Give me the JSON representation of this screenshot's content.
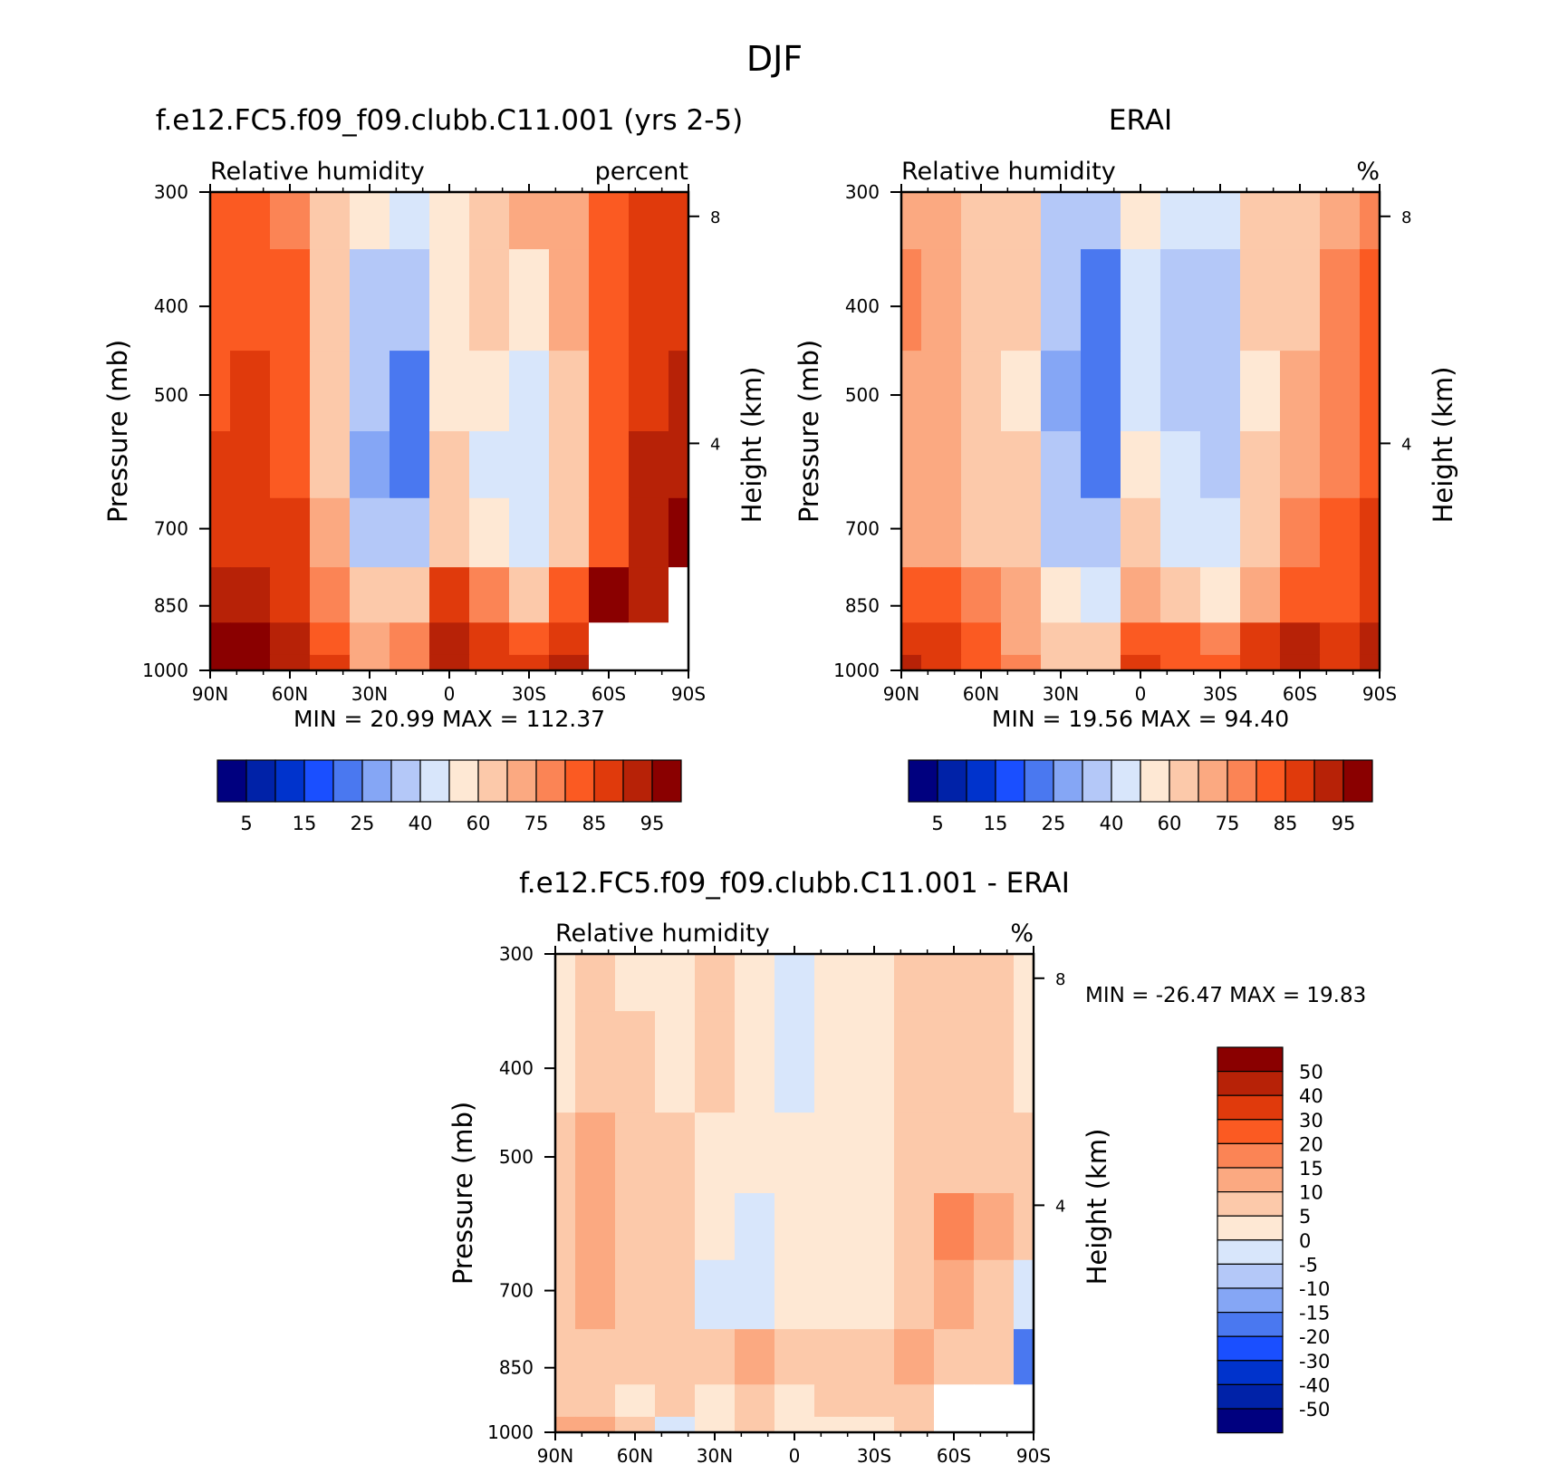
{
  "figure": {
    "title": "DJF"
  },
  "colors": {
    "rh_scale": [
      "#00007f",
      "#0022a8",
      "#0033cc",
      "#1a4fff",
      "#4a78f0",
      "#85a6f5",
      "#b4c8f8",
      "#d8e6fb",
      "#fee8d4",
      "#fcc9aa",
      "#fba981",
      "#fb8455",
      "#fb5a22",
      "#e03a0c",
      "#b72207",
      "#8a0000"
    ],
    "diff_scale": [
      "#00007f",
      "#0022a8",
      "#0033cc",
      "#1a4fff",
      "#4a78f0",
      "#85a6f5",
      "#b4c8f8",
      "#d8e6fb",
      "#fee8d4",
      "#fcc9aa",
      "#fba981",
      "#fb8455",
      "#fb5a22",
      "#e03a0c",
      "#b72207",
      "#8a0000"
    ]
  },
  "chart_data": [
    {
      "type": "heatmap",
      "title": "f.e12.FC5.f09_f09.clubb.C11.001 (yrs 2-5)",
      "variable_label": "Relative humidity",
      "units_label": "percent",
      "ylabel": "Pressure (mb)",
      "y2label": "Height (km)",
      "x_ticks": [
        "90N",
        "60N",
        "30N",
        "0",
        "30S",
        "60S",
        "90S"
      ],
      "y_ticks": [
        "300",
        "400",
        "500",
        "700",
        "850",
        "1000"
      ],
      "y_tick_values": [
        300,
        400,
        500,
        700,
        850,
        1000
      ],
      "y2_ticks": [
        "8",
        "4"
      ],
      "y2_tick_values": [
        8,
        4
      ],
      "ylim": [
        1000,
        300
      ],
      "xlim": [
        90,
        -90
      ],
      "stats_text": "MIN =   20.99   MAX = 112.37",
      "min": 20.99,
      "max": 112.37,
      "colorbar_labels": [
        "5",
        "15",
        "25",
        "40",
        "60",
        "75",
        "85",
        "95"
      ],
      "grid_lat": [
        90,
        75,
        60,
        45,
        30,
        15,
        0,
        -15,
        -30,
        -45,
        -60,
        -75,
        -90
      ],
      "grid_lev": [
        300,
        400,
        500,
        600,
        700,
        850,
        925,
        1000
      ],
      "values": [
        [
          80,
          82,
          78,
          65,
          50,
          40,
          55,
          68,
          70,
          72,
          80,
          85,
          88
        ],
        [
          82,
          84,
          80,
          66,
          38,
          30,
          50,
          60,
          55,
          70,
          82,
          86,
          88
        ],
        [
          84,
          86,
          82,
          68,
          30,
          24,
          52,
          52,
          46,
          64,
          80,
          88,
          90
        ],
        [
          86,
          86,
          84,
          68,
          28,
          24,
          62,
          48,
          42,
          66,
          82,
          92,
          94
        ],
        [
          88,
          88,
          86,
          70,
          36,
          30,
          64,
          50,
          42,
          66,
          84,
          92,
          96
        ],
        [
          92,
          92,
          88,
          78,
          60,
          64,
          88,
          78,
          62,
          80,
          96,
          90,
          null
        ],
        [
          100,
          98,
          92,
          84,
          72,
          76,
          92,
          88,
          84,
          88,
          null,
          null,
          null
        ],
        [
          104,
          102,
          94,
          86,
          74,
          78,
          90,
          88,
          86,
          90,
          null,
          null,
          null
        ]
      ]
    },
    {
      "type": "heatmap",
      "title": "ERAI",
      "variable_label": "Relative humidity",
      "units_label": "%",
      "ylabel": "Pressure (mb)",
      "y2label": "Height (km)",
      "x_ticks": [
        "90N",
        "60N",
        "30N",
        "0",
        "30S",
        "60S",
        "90S"
      ],
      "y_ticks": [
        "300",
        "400",
        "500",
        "700",
        "850",
        "1000"
      ],
      "y_tick_values": [
        300,
        400,
        500,
        700,
        850,
        1000
      ],
      "y2_ticks": [
        "8",
        "4"
      ],
      "y2_tick_values": [
        8,
        4
      ],
      "ylim": [
        1000,
        300
      ],
      "xlim": [
        90,
        -90
      ],
      "stats_text": "MIN =   19.56   MAX =   94.40",
      "min": 19.56,
      "max": 94.4,
      "colorbar_labels": [
        "5",
        "15",
        "25",
        "40",
        "60",
        "75",
        "85",
        "95"
      ],
      "grid_lat": [
        90,
        75,
        60,
        45,
        30,
        15,
        0,
        -15,
        -30,
        -45,
        -60,
        -75,
        -90
      ],
      "grid_lev": [
        300,
        400,
        500,
        600,
        700,
        850,
        925,
        1000
      ],
      "values": [
        [
          72,
          70,
          68,
          62,
          36,
          30,
          55,
          45,
          48,
          62,
          66,
          72,
          78
        ],
        [
          76,
          72,
          68,
          60,
          30,
          24,
          48,
          38,
          36,
          60,
          68,
          76,
          82
        ],
        [
          74,
          70,
          66,
          58,
          28,
          22,
          44,
          36,
          34,
          58,
          70,
          76,
          82
        ],
        [
          72,
          70,
          66,
          60,
          30,
          24,
          52,
          40,
          36,
          60,
          72,
          78,
          84
        ],
        [
          74,
          72,
          68,
          62,
          38,
          32,
          60,
          46,
          40,
          62,
          76,
          80,
          86
        ],
        [
          80,
          80,
          76,
          70,
          54,
          48,
          72,
          62,
          54,
          72,
          82,
          84,
          88
        ],
        [
          86,
          86,
          82,
          74,
          64,
          62,
          84,
          80,
          76,
          86,
          90,
          86,
          90
        ],
        [
          90,
          88,
          84,
          76,
          66,
          66,
          86,
          82,
          80,
          88,
          90,
          88,
          92
        ]
      ]
    },
    {
      "type": "heatmap",
      "title": "f.e12.FC5.f09_f09.clubb.C11.001 - ERAI",
      "variable_label": "Relative humidity",
      "units_label": "%",
      "ylabel": "Pressure (mb)",
      "y2label": "Height (km)",
      "x_ticks": [
        "90N",
        "60N",
        "30N",
        "0",
        "30S",
        "60S",
        "90S"
      ],
      "y_ticks": [
        "300",
        "400",
        "500",
        "700",
        "850",
        "1000"
      ],
      "y_tick_values": [
        300,
        400,
        500,
        700,
        850,
        1000
      ],
      "y2_ticks": [
        "8",
        "4"
      ],
      "y2_tick_values": [
        8,
        4
      ],
      "ylim": [
        1000,
        300
      ],
      "xlim": [
        90,
        -90
      ],
      "stats_text": "MIN = -26.47   MAX =   19.83",
      "min": -26.47,
      "max": 19.83,
      "colorbar_labels": [
        "50",
        "40",
        "30",
        "20",
        "15",
        "10",
        "5",
        "0",
        "-5",
        "-10",
        "-15",
        "-20",
        "-30",
        "-40",
        "-50"
      ],
      "grid_lat": [
        90,
        75,
        60,
        45,
        30,
        15,
        0,
        -15,
        -30,
        -45,
        -60,
        -75,
        -90
      ],
      "grid_lev": [
        300,
        400,
        500,
        600,
        700,
        850,
        925,
        1000
      ],
      "values": [
        [
          3,
          6,
          4,
          3,
          5,
          2,
          -2,
          4,
          3,
          5,
          7,
          6,
          3
        ],
        [
          4,
          8,
          6,
          4,
          6,
          3,
          -3,
          3,
          4,
          6,
          8,
          6,
          4
        ],
        [
          6,
          10,
          8,
          5,
          2,
          4,
          1,
          2,
          3,
          8,
          9,
          8,
          6
        ],
        [
          7,
          11,
          9,
          6,
          1,
          -1,
          2,
          2,
          4,
          9,
          16,
          10,
          8
        ],
        [
          7,
          11,
          9,
          6,
          -2,
          -1,
          3,
          3,
          4,
          9,
          11,
          8,
          -4
        ],
        [
          6,
          9,
          7,
          5,
          6,
          12,
          5,
          6,
          8,
          14,
          8,
          6,
          -20
        ],
        [
          8,
          7,
          4,
          6,
          4,
          8,
          3,
          5,
          6,
          5,
          null,
          null,
          null
        ],
        [
          12,
          10,
          5,
          -2,
          4,
          6,
          2,
          3,
          4,
          5,
          null,
          null,
          null
        ]
      ]
    }
  ]
}
